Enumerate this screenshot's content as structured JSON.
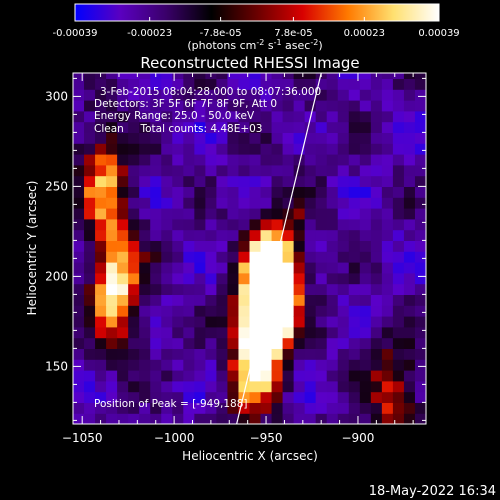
{
  "colorbar": {
    "tick_labels": [
      "-0.00039",
      "-0.00023",
      "-7.8e-05",
      "7.8e-05",
      "0.00023",
      "0.00039"
    ],
    "tick_values": [
      -0.00039,
      -0.00023,
      -7.8e-05,
      7.8e-05,
      0.00023,
      0.00039
    ],
    "range": [
      -0.00039,
      0.00039
    ],
    "units_prefix": "(photons cm",
    "units_exp1": "-2",
    "units_mid": " s",
    "units_exp2": "-1",
    "units_suffix": " asec",
    "units_exp3": "-2",
    "units_close": ")",
    "colors": [
      "#0000ff",
      "#5a00c0",
      "#3a006a",
      "#000000",
      "#6a0000",
      "#d80000",
      "#ff7a00",
      "#ffe070",
      "#ffffff"
    ]
  },
  "chart_data": {
    "type": "heatmap",
    "title": "Reconstructed RHESSI Image",
    "xlabel": "Heliocentric X (arcsec)",
    "ylabel": "Heliocentric Y (arcsec)",
    "xlim": [
      -1055,
      -863
    ],
    "ylim": [
      118,
      313
    ],
    "xticks": [
      -1050,
      -1000,
      -950,
      -900
    ],
    "xtick_labels": [
      "−1050",
      "−1000",
      "−950",
      "−900"
    ],
    "yticks": [
      150,
      200,
      250,
      300
    ],
    "ytick_labels": [
      "150",
      "200",
      "250",
      "300"
    ],
    "annotations": [
      "3-Feb-2015 08:04:28.000 to 08:07:36.000",
      "Detectors: 3F 5F 6F 7F 8F 9F, Att 0",
      "Energy Range: 25.0 - 50.0 keV",
      "Clean     Total counts: 4.48E+03"
    ],
    "peak_label": "Position of Peak = [-949,188]",
    "peak": [
      -949,
      188
    ],
    "limb_line": [
      [
        -966,
        118
      ],
      [
        -920,
        313
      ]
    ],
    "bright_sources": [
      {
        "x": -950,
        "y": 185,
        "amplitude": 1.0
      },
      {
        "x": -945,
        "y": 200,
        "amplitude": 0.85
      },
      {
        "x": -955,
        "y": 155,
        "amplitude": 0.7
      },
      {
        "x": -1030,
        "y": 195,
        "amplitude": 0.6
      },
      {
        "x": -1040,
        "y": 260,
        "amplitude": 0.45
      },
      {
        "x": -880,
        "y": 135,
        "amplitude": 0.55
      }
    ]
  },
  "footer": {
    "timestamp": "18-May-2022 16:34"
  }
}
